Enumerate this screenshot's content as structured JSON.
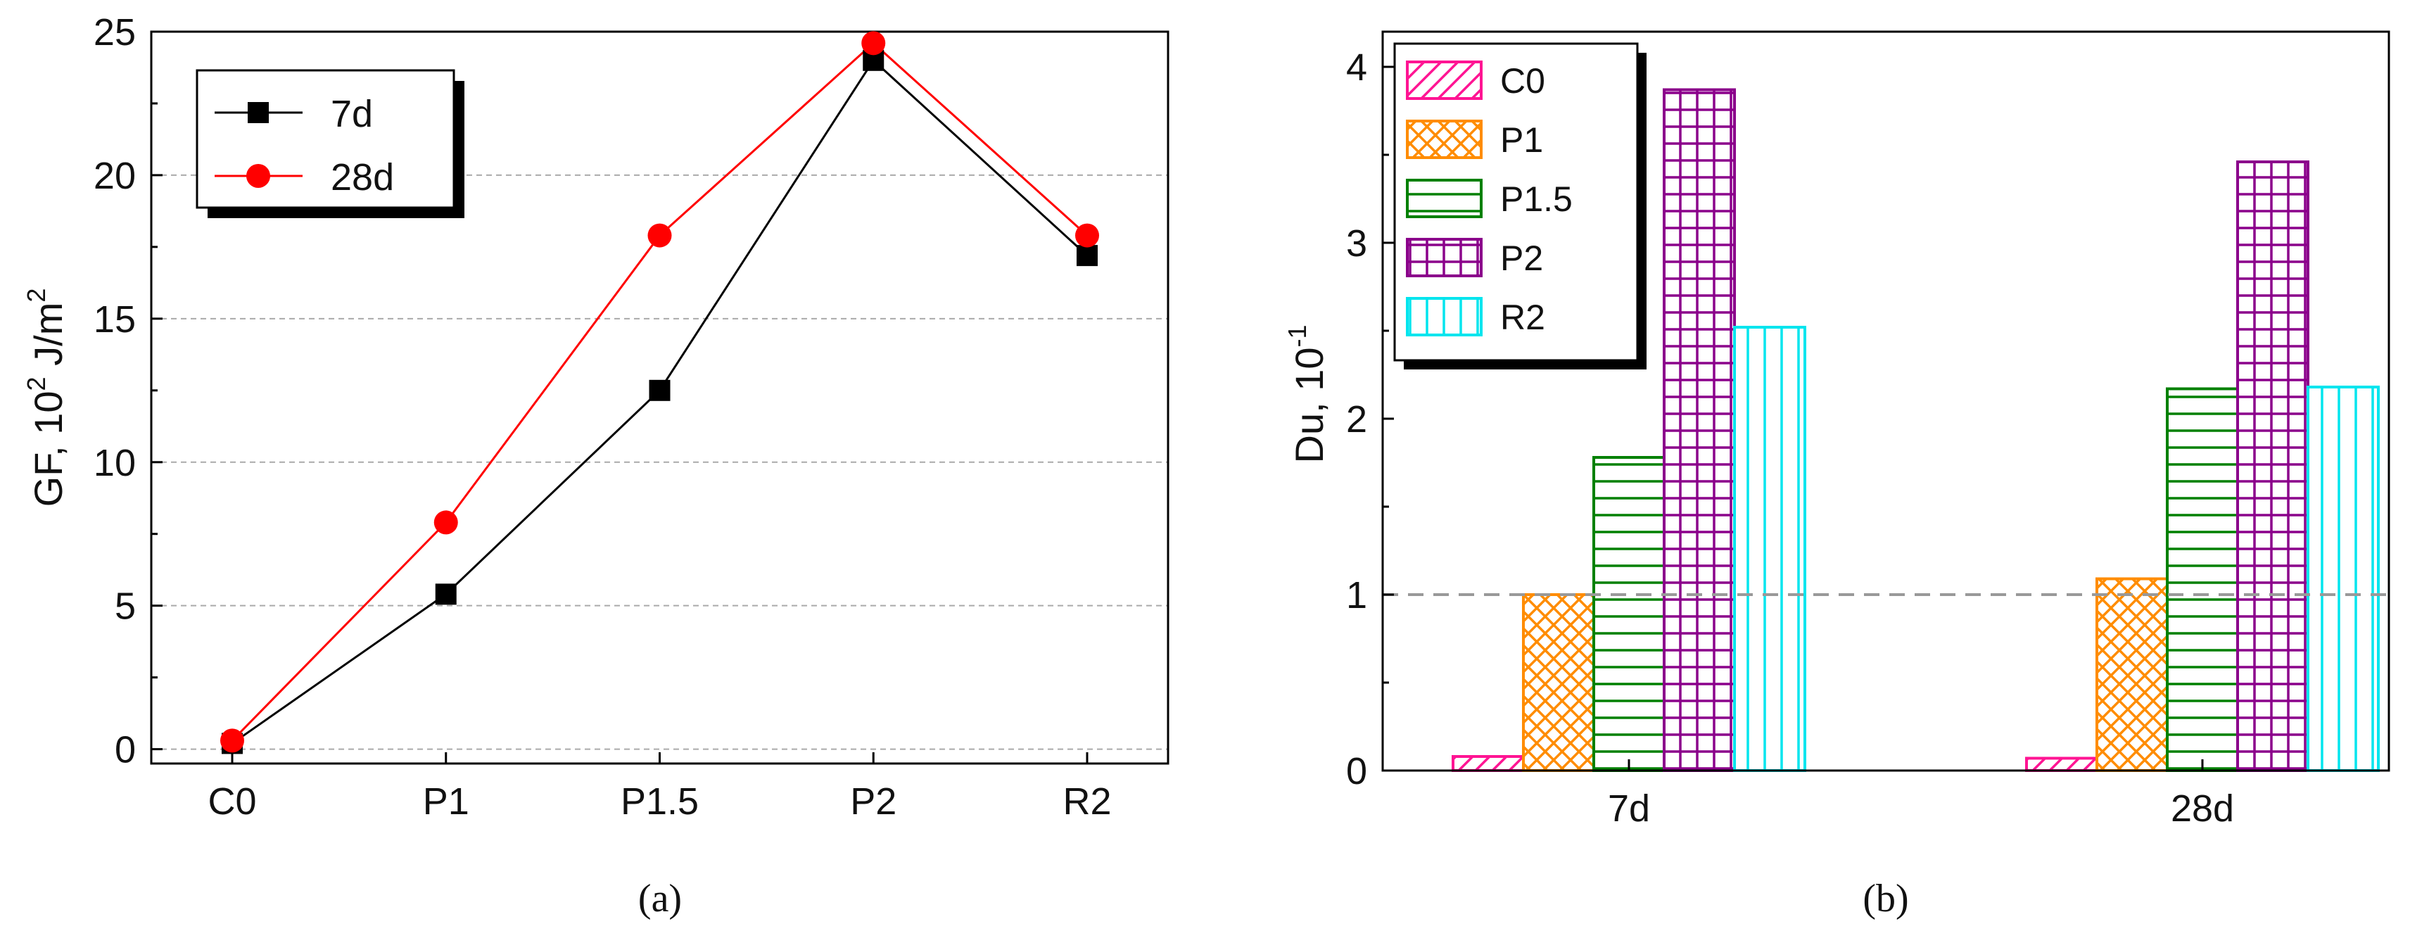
{
  "chart_data": [
    {
      "type": "line",
      "panel": "a",
      "caption": "(a)",
      "ylabel": "GF, 10",
      "ylabel_sup": "2",
      "ylabel_unit": " J/m",
      "ylabel_unit_sup": "2",
      "xlabel": "",
      "categories": [
        "C0",
        "P1",
        "P1.5",
        "P2",
        "R2"
      ],
      "ylim": [
        -0.5,
        25
      ],
      "yticks": [
        0,
        5,
        10,
        15,
        20,
        25
      ],
      "grid": "horizontal dashed",
      "legend_position": "top-left",
      "series": [
        {
          "name": "7d",
          "color": "#000000",
          "marker": "square",
          "values": [
            0.2,
            5.4,
            12.5,
            24.0,
            17.2
          ]
        },
        {
          "name": "28d",
          "color": "#ff0000",
          "marker": "circle",
          "values": [
            0.3,
            7.9,
            17.9,
            24.6,
            17.9
          ]
        }
      ]
    },
    {
      "type": "bar",
      "panel": "b",
      "caption": "(b)",
      "ylabel": "Du,  10",
      "ylabel_sup": "-1",
      "xlabel": "",
      "categories": [
        "7d",
        "28d"
      ],
      "ylim": [
        0,
        4.2
      ],
      "yticks": [
        0,
        1,
        2,
        3,
        4
      ],
      "reference_line": 1,
      "legend_position": "top-left",
      "series": [
        {
          "name": "C0",
          "color": "#ff1493",
          "pattern": "diagonal",
          "values": [
            0.08,
            0.07
          ]
        },
        {
          "name": "P1",
          "color": "#ff8c00",
          "pattern": "crosshatch",
          "values": [
            1.0,
            1.09
          ]
        },
        {
          "name": "P1.5",
          "color": "#008000",
          "pattern": "horizontal",
          "values": [
            1.78,
            2.17
          ]
        },
        {
          "name": "P2",
          "color": "#8b008b",
          "pattern": "grid",
          "values": [
            3.87,
            3.46
          ]
        },
        {
          "name": "R2",
          "color": "#00e5ee",
          "pattern": "vertical",
          "values": [
            2.52,
            2.18
          ]
        }
      ]
    }
  ]
}
